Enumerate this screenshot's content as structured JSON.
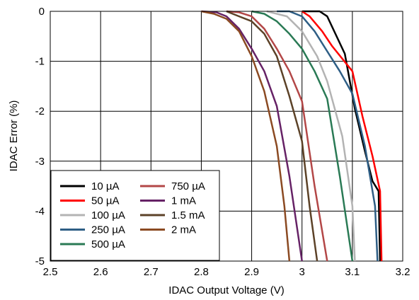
{
  "chart_data": {
    "type": "line",
    "xlabel": "IDAC Output Voltage (V)",
    "ylabel": "IDAC Error (%)",
    "xlim": [
      2.5,
      3.2
    ],
    "ylim": [
      -5,
      0
    ],
    "xticks": [
      "2.5",
      "2.6",
      "2.7",
      "2.8",
      "2.9",
      "3",
      "3.1",
      "3.2"
    ],
    "yticks": [
      "0",
      "-1",
      "-2",
      "-3",
      "-4",
      "-5"
    ],
    "grid": true,
    "legend_position": "bottom-left",
    "series": [
      {
        "name": "10 µA",
        "color": "#000000",
        "x": [
          3.0,
          3.015,
          3.035,
          3.05,
          3.085,
          3.105,
          3.125,
          3.14,
          3.152,
          3.155
        ],
        "y": [
          0,
          0,
          0,
          -0.1,
          -0.85,
          -1.95,
          -2.8,
          -3.4,
          -3.6,
          -5.0
        ]
      },
      {
        "name": "50 µA",
        "color": "#ff0000",
        "x": [
          3.0,
          3.015,
          3.04,
          3.06,
          3.1,
          3.12,
          3.14,
          3.155,
          3.158
        ],
        "y": [
          0,
          -0.1,
          -0.4,
          -0.7,
          -1.2,
          -2.1,
          -2.9,
          -3.6,
          -5.0
        ]
      },
      {
        "name": "100 µA",
        "color": "#b3b3b3",
        "x": [
          2.93,
          2.97,
          3.0,
          3.03,
          3.05,
          3.08,
          3.1,
          3.105
        ],
        "y": [
          0,
          -0.1,
          -0.4,
          -0.9,
          -1.4,
          -2.5,
          -3.9,
          -5.0
        ]
      },
      {
        "name": "250 µA",
        "color": "#2e5e85",
        "x": [
          2.95,
          2.975,
          3.0,
          3.025,
          3.05,
          3.075,
          3.1,
          3.125,
          3.145,
          3.15
        ],
        "y": [
          0,
          0,
          -0.1,
          -0.4,
          -0.8,
          -1.2,
          -1.65,
          -2.7,
          -3.9,
          -5.0
        ]
      },
      {
        "name": "500 µA",
        "color": "#2a7a55",
        "x": [
          2.9,
          2.925,
          2.95,
          2.975,
          3.0,
          3.025,
          3.05,
          3.075,
          3.1
        ],
        "y": [
          0,
          -0.05,
          -0.2,
          -0.45,
          -0.75,
          -1.2,
          -1.75,
          -3.3,
          -5.0
        ]
      },
      {
        "name": "750 µA",
        "color": "#b34747",
        "x": [
          2.85,
          2.875,
          2.9,
          2.925,
          2.95,
          2.975,
          3.0,
          3.025,
          3.05
        ],
        "y": [
          0,
          -0.02,
          -0.1,
          -0.35,
          -0.75,
          -1.2,
          -1.8,
          -3.5,
          -5.0
        ]
      },
      {
        "name": "1 mA",
        "color": "#662266",
        "x": [
          2.8,
          2.83,
          2.85,
          2.875,
          2.9,
          2.925,
          2.95,
          2.975,
          3.0
        ],
        "y": [
          0,
          -0.02,
          -0.1,
          -0.35,
          -0.75,
          -1.2,
          -1.9,
          -3.3,
          -5.0
        ]
      },
      {
        "name": "1.5 mA",
        "color": "#5c4228",
        "x": [
          2.85,
          2.875,
          2.9,
          2.925,
          2.95,
          2.975,
          3.0,
          3.015,
          3.03
        ],
        "y": [
          0,
          -0.1,
          -0.2,
          -0.45,
          -0.9,
          -1.7,
          -2.6,
          -3.9,
          -5.0
        ]
      },
      {
        "name": "2 mA",
        "color": "#8b4a22",
        "x": [
          2.8,
          2.825,
          2.85,
          2.875,
          2.9,
          2.925,
          2.95,
          2.965,
          2.975
        ],
        "y": [
          0,
          -0.05,
          -0.15,
          -0.4,
          -0.9,
          -1.6,
          -2.7,
          -3.9,
          -5.0
        ]
      }
    ]
  }
}
